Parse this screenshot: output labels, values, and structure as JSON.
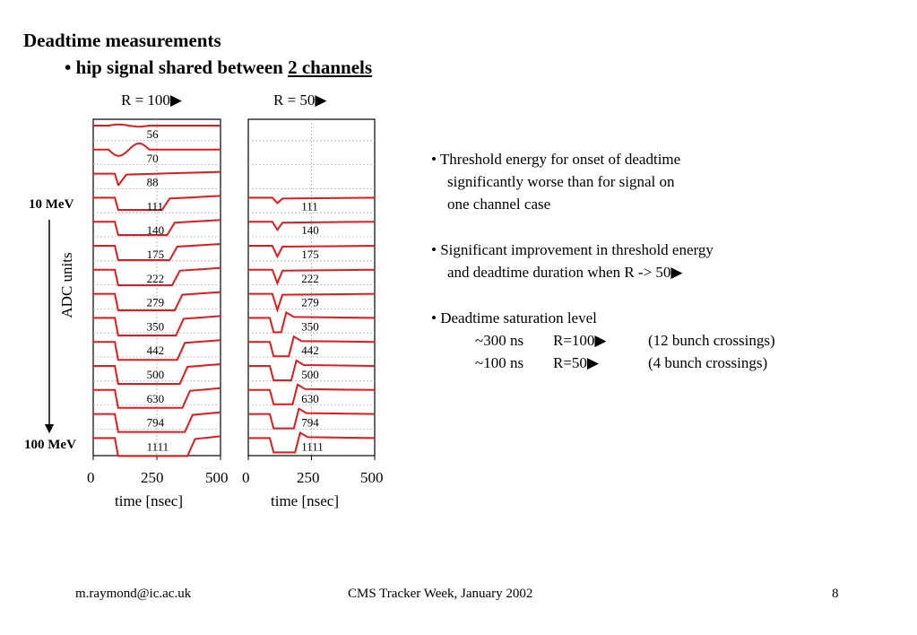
{
  "slide": {
    "title": "Deadtime measurements",
    "subtitle_prefix": "• hip signal shared between ",
    "subtitle_underlined": "2 channels",
    "page_number": "8",
    "footer_left": "m.raymond@ic.ac.uk",
    "footer_center": "CMS Tracker Week, January 2002"
  },
  "panels": {
    "left_label": "R = 100▶",
    "right_label": "R = 50▶",
    "y_axis_label": "ADC units",
    "energy_top": "10 MeV",
    "energy_bottom": "100 MeV",
    "x_ticks": [
      "0",
      "250",
      "500"
    ],
    "x_label": "time [nsec]"
  },
  "bullets": {
    "b1_lines": [
      "• Threshold energy for onset of deadtime",
      "significantly worse than for signal on",
      "one channel case"
    ],
    "b2_lines": [
      "• Significant improvement in threshold energy",
      "and deadtime duration when R -> 50▶"
    ],
    "b3_title": "• Deadtime saturation level",
    "sat_rows": [
      {
        "time": "~300 ns",
        "r": "R=100▶",
        "bx": "(12 bunch crossings)"
      },
      {
        "time": "~100 ns",
        "r": "R=50▶",
        "bx": "(4 bunch crossings)"
      }
    ]
  },
  "colors": {
    "trace": "#e31a1c",
    "grid": "#b0b0b0"
  },
  "chart_data": [
    {
      "type": "line",
      "title": "R = 100▶",
      "xlabel": "time [nsec]",
      "ylabel": "ADC units",
      "xlim": [
        0,
        500
      ],
      "trace_labels": [
        "56",
        "70",
        "88",
        "111",
        "140",
        "175",
        "222",
        "279",
        "350",
        "442",
        "500",
        "630",
        "794",
        "1111"
      ],
      "deadtime_end_ns": [
        0,
        0,
        130,
        300,
        320,
        330,
        340,
        350,
        355,
        360,
        370,
        380,
        390,
        400
      ],
      "grid": true
    },
    {
      "type": "line",
      "title": "R = 50▶",
      "xlabel": "time [nsec]",
      "ylabel": "ADC units",
      "xlim": [
        0,
        500
      ],
      "trace_labels": [
        "111",
        "140",
        "175",
        "222",
        "279",
        "350",
        "442",
        "500",
        "630",
        "794",
        "1111"
      ],
      "deadtime_end_ns": [
        0,
        0,
        0,
        0,
        0,
        140,
        170,
        180,
        185,
        190,
        195
      ],
      "grid": true
    }
  ]
}
